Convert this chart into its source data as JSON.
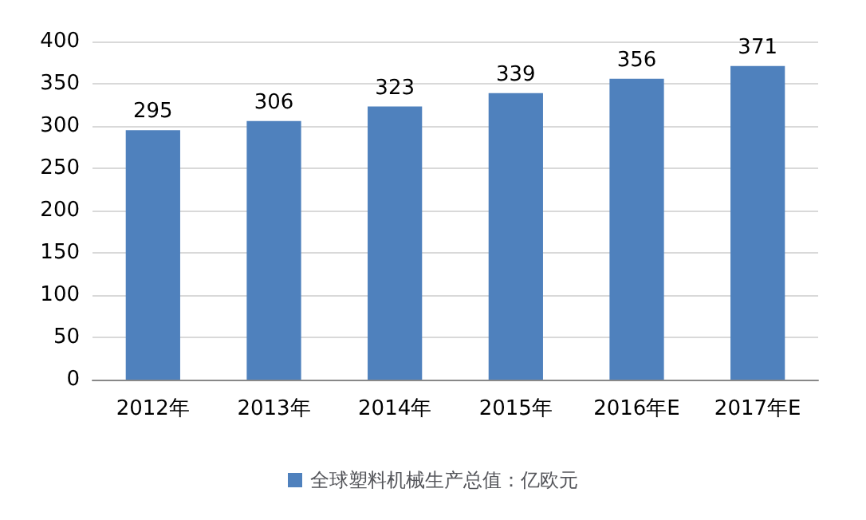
{
  "chart_data": {
    "type": "bar",
    "categories": [
      "2012年",
      "2013年",
      "2014年",
      "2015年",
      "2016年E",
      "2017年E"
    ],
    "series": [
      {
        "name": "全球塑料机械生产总值：亿欧元",
        "color": "#4f81bd",
        "values": [
          295,
          306,
          323,
          339,
          356,
          371
        ]
      }
    ],
    "ylim": [
      0,
      400
    ],
    "yticks": [
      0,
      50,
      100,
      150,
      200,
      250,
      300,
      350,
      400
    ],
    "grid": "y",
    "legend": "bottom",
    "data_labels": true
  }
}
